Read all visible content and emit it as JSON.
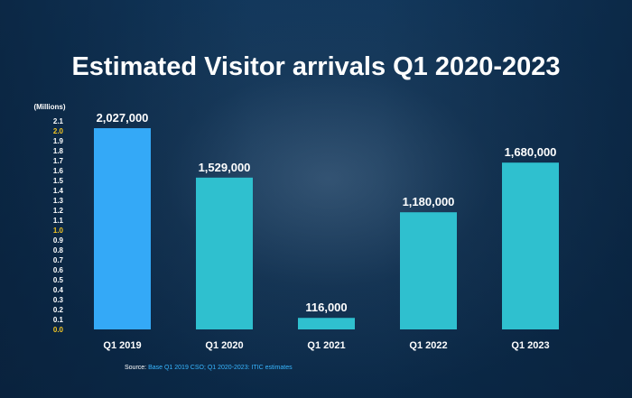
{
  "chart_data": {
    "type": "bar",
    "title": "Estimated Visitor arrivals Q1 2020-2023",
    "ylabel": "(Millions)",
    "ylim": [
      0,
      2.1
    ],
    "yticks": [
      "0.0",
      "0.1",
      "0.2",
      "0.3",
      "0.4",
      "0.5",
      "0.6",
      "0.7",
      "0.8",
      "0.9",
      "1.0",
      "1.1",
      "1.2",
      "1.3",
      "1.4",
      "1.5",
      "1.6",
      "1.7",
      "1.8",
      "1.9",
      "2.0",
      "2.1"
    ],
    "highlight_ticks": [
      "0.0",
      "1.0",
      "2.0"
    ],
    "categories": [
      "Q1 2019",
      "Q1 2020",
      "Q1 2021",
      "Q1 2022",
      "Q1 2023"
    ],
    "values": [
      2027000,
      1529000,
      116000,
      1180000,
      1680000
    ],
    "data_labels": [
      "2,027,000",
      "1,529,000",
      "116,000",
      "1,180,000",
      "1,680,000"
    ],
    "bar_colors": [
      "#34a9f7",
      "#2fc0cf",
      "#2fc0cf",
      "#2fc0cf",
      "#2fc0cf"
    ],
    "grid": false,
    "legend": "none"
  },
  "source": {
    "prefix": "Source:",
    "text": "Base Q1 2019 CSO; Q1 2020-2023: ITIC estimates"
  },
  "colors": {
    "background": "#0f3457",
    "highlight_tick": "#f3c623",
    "source_text": "#38b6ff"
  }
}
